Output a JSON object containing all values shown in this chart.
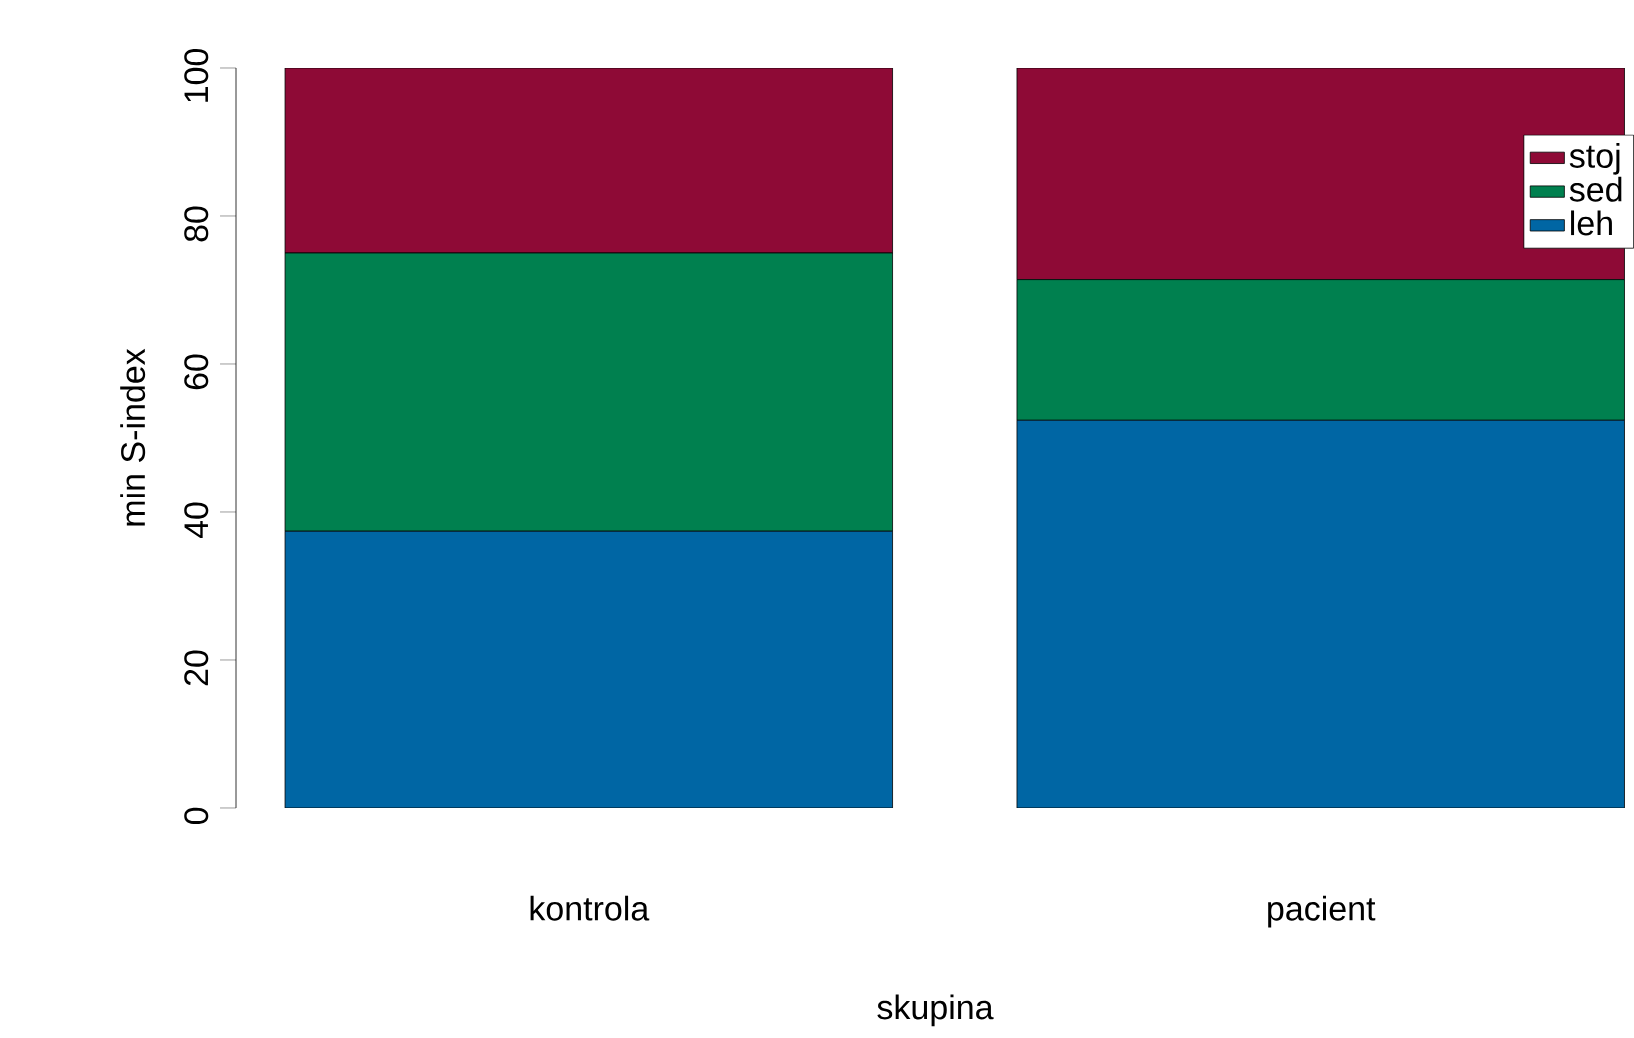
{
  "chart_data": {
    "type": "bar",
    "stacked": true,
    "xlabel": "skupina",
    "ylabel": "min S-index",
    "categories": [
      "kontrola",
      "pacient"
    ],
    "series": [
      {
        "name": "leh",
        "color": "#0066a4",
        "values": [
          37.4,
          52.4
        ]
      },
      {
        "name": "sed",
        "color": "#00804f",
        "values": [
          37.6,
          19.0
        ]
      },
      {
        "name": "stoj",
        "color": "#8e0a36",
        "values": [
          25.0,
          28.6
        ]
      }
    ],
    "ylim": [
      0,
      100
    ],
    "yticks": [
      0,
      20,
      40,
      60,
      80,
      100
    ],
    "grid": false,
    "legend": "top right"
  }
}
